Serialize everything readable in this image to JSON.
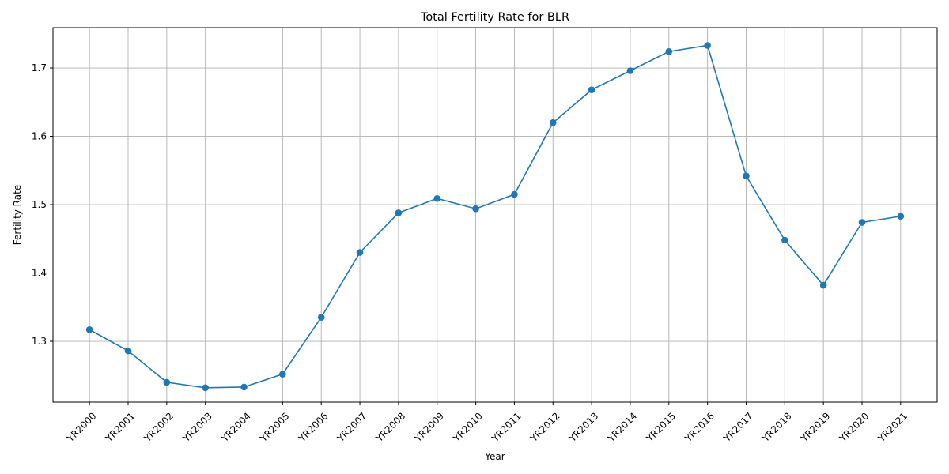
{
  "chart_data": {
    "type": "line",
    "title": "Total Fertility Rate for BLR",
    "xlabel": "Year",
    "ylabel": "Fertility Rate",
    "categories": [
      "YR2000",
      "YR2001",
      "YR2002",
      "YR2003",
      "YR2004",
      "YR2005",
      "YR2006",
      "YR2007",
      "YR2008",
      "YR2009",
      "YR2010",
      "YR2011",
      "YR2012",
      "YR2013",
      "YR2014",
      "YR2015",
      "YR2016",
      "YR2017",
      "YR2018",
      "YR2019",
      "YR2020",
      "YR2021"
    ],
    "series": [
      {
        "values": [
          1.317,
          1.286,
          1.24,
          1.232,
          1.233,
          1.252,
          1.335,
          1.43,
          1.488,
          1.509,
          1.494,
          1.515,
          1.62,
          1.668,
          1.696,
          1.724,
          1.733,
          1.542,
          1.448,
          1.382,
          1.474,
          1.483
        ],
        "color": "#1f77b4",
        "marker": "circle"
      }
    ],
    "ylim": [
      1.211,
      1.759
    ],
    "yticks": [
      "1.3",
      "1.4",
      "1.5",
      "1.6",
      "1.7"
    ],
    "grid": true,
    "x_tick_rotation": 45
  }
}
